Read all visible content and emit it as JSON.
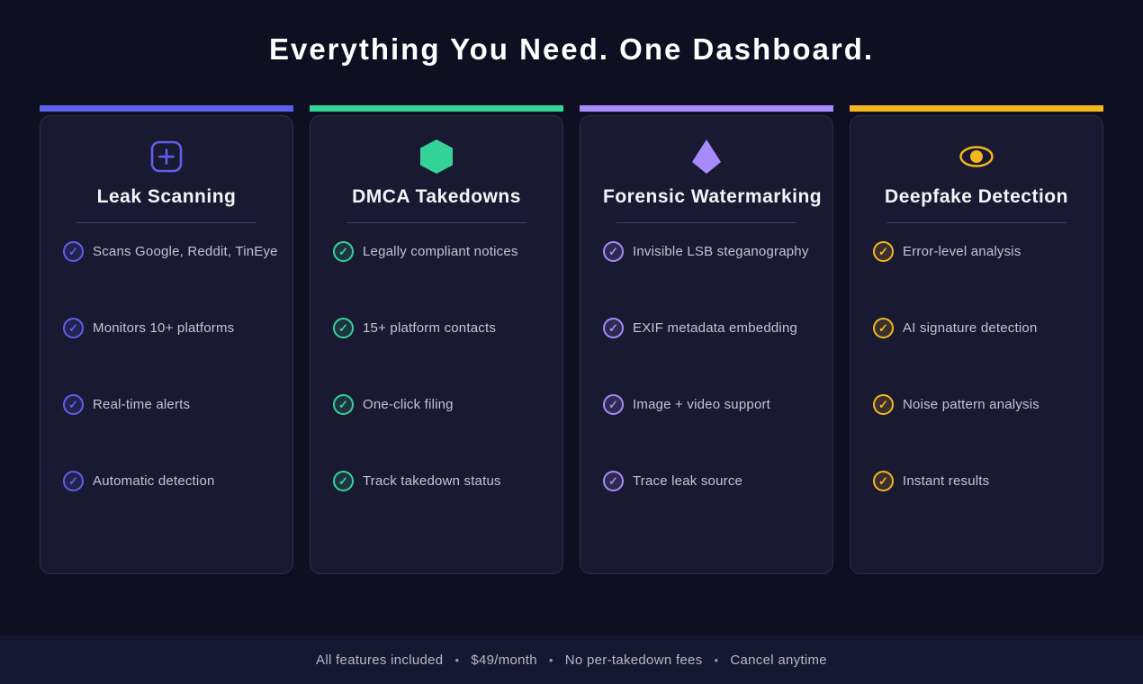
{
  "section": {
    "title": "Everything You Need. One Dashboard."
  },
  "cards": [
    {
      "id": "leak-scanning",
      "title": "Leak Scanning",
      "icon": "plus-square-icon",
      "accent": "#5d60ea",
      "features": [
        "Scans Google, Reddit, TinEye",
        "Monitors 10+ platforms",
        "Real-time alerts",
        "Automatic detection"
      ]
    },
    {
      "id": "dmca-takedowns",
      "title": "DMCA Takedowns",
      "icon": "hexagon-icon",
      "accent": "#34d399",
      "features": [
        "Legally compliant notices",
        "15+ platform contacts",
        "One-click filing",
        "Track takedown status"
      ]
    },
    {
      "id": "forensic-watermarking",
      "title": "Forensic Watermarking",
      "icon": "diamond-icon",
      "accent": "#a78bfa",
      "features": [
        "Invisible LSB steganography",
        "EXIF metadata embedding",
        "Image + video support",
        "Trace leak source"
      ]
    },
    {
      "id": "deepfake-detection",
      "title": "Deepfake Detection",
      "icon": "eye-icon",
      "accent": "#f3b71d",
      "features": [
        "Error-level analysis",
        "AI signature detection",
        "Noise pattern analysis",
        "Instant results"
      ]
    }
  ],
  "footer": {
    "items": [
      "All features included",
      "$49/month",
      "No per-takedown fees",
      "Cancel anytime"
    ],
    "separator": "•"
  },
  "colors": {
    "page_bg": "#0e0f21",
    "card_bg": "#1a1932",
    "card_border": "#2d2b4d",
    "footer_bg": "#161730",
    "heading_text": "#ffffff",
    "body_text": "#c5c4d1",
    "footer_text": "#b9b8c7",
    "divider": "#413f63",
    "accent_indigo": "#5d60ea",
    "accent_green": "#34d399",
    "accent_purple": "#a78bfa",
    "accent_amber": "#f3b71d"
  }
}
